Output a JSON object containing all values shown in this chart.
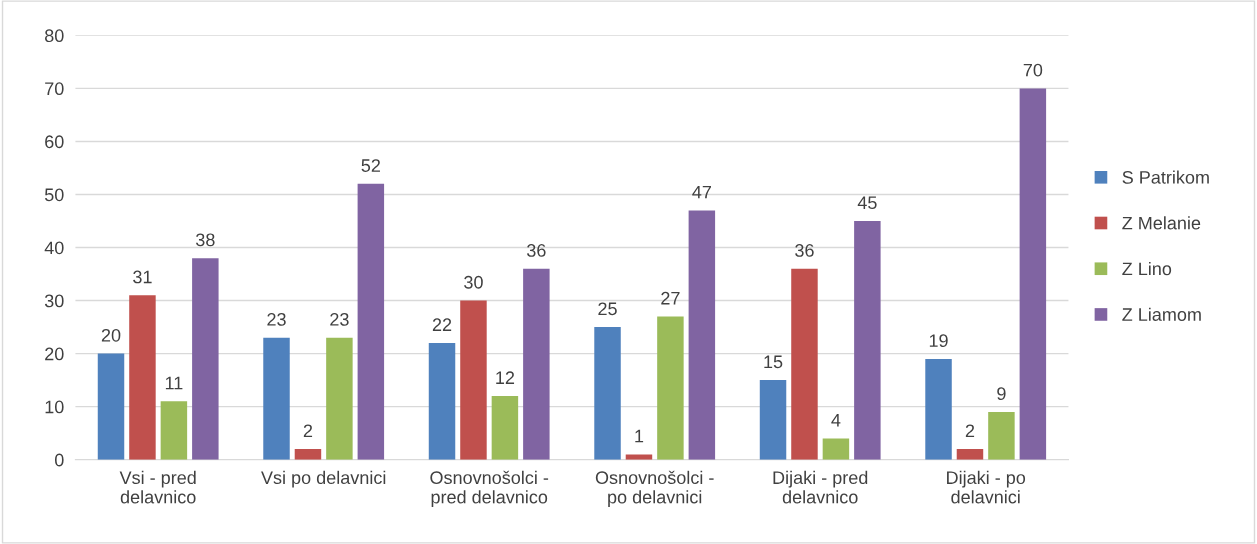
{
  "chart_data": {
    "type": "bar",
    "categories": [
      "Vsi - pred\ndelavnico",
      "Vsi po delavnici",
      "Osnovnošolci -\npred delavnico",
      "Osnovnošolci -\npo delavnici",
      "Dijaki - pred\ndelavnico",
      "Dijaki - po\ndelavnici"
    ],
    "series": [
      {
        "name": "S Patrikom",
        "color": "#4f81bd",
        "values": [
          20,
          23,
          22,
          25,
          15,
          19
        ]
      },
      {
        "name": "Z Melanie",
        "color": "#c0504d",
        "values": [
          31,
          2,
          30,
          1,
          36,
          2
        ]
      },
      {
        "name": "Z Lino",
        "color": "#9bbb59",
        "values": [
          11,
          23,
          12,
          27,
          4,
          9
        ]
      },
      {
        "name": "Z Liamom",
        "color": "#8064a2",
        "values": [
          38,
          52,
          36,
          47,
          45,
          70
        ]
      }
    ],
    "ylim": [
      0,
      80
    ],
    "yticks": [
      0,
      10,
      20,
      30,
      40,
      50,
      60,
      70,
      80
    ],
    "grid": "y",
    "legend": "right",
    "data_labels": true
  }
}
